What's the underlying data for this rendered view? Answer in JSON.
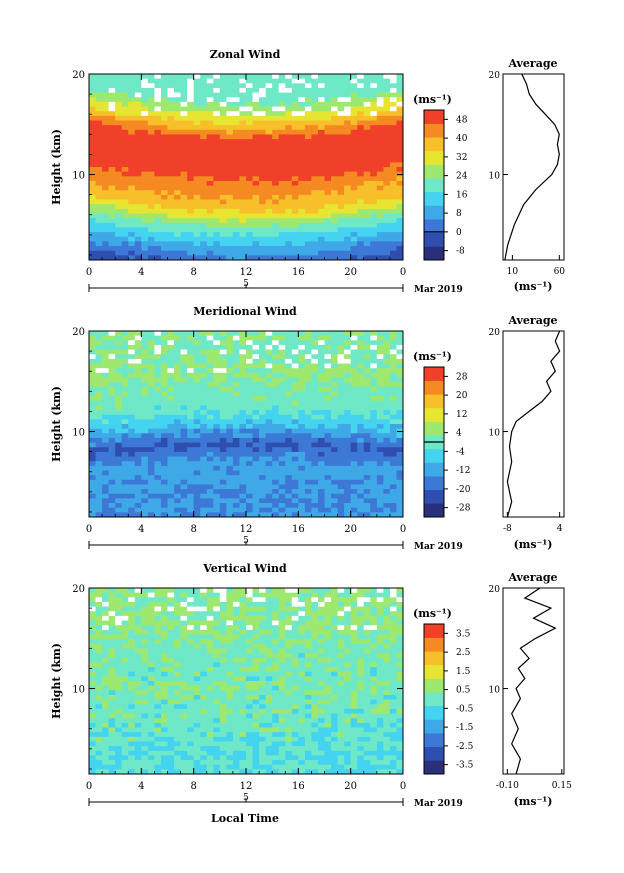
{
  "figure": {
    "xlabel": "Local Time",
    "date_label": "Mar 2019",
    "date_marker": "5"
  },
  "panels": [
    {
      "title": "Zonal Wind",
      "ylabel": "Height (km)",
      "unit": "(ms⁻¹)",
      "avg_title": "Average",
      "avg_unit": "(ms⁻¹)"
    },
    {
      "title": "Meridional Wind",
      "ylabel": "Height (km)",
      "unit": "(ms⁻¹)",
      "avg_title": "Average",
      "avg_unit": "(ms⁻¹)"
    },
    {
      "title": "Vertical Wind",
      "ylabel": "Height (km)",
      "unit": "(ms⁻¹)",
      "avg_title": "Average",
      "avg_unit": "(ms⁻¹)"
    }
  ],
  "colors": {
    "scale": [
      "#2b2f7a",
      "#2e4fb0",
      "#3d78d6",
      "#3fa8e6",
      "#44d4f0",
      "#6fe8c8",
      "#9fe870",
      "#e6e632",
      "#f7c02a",
      "#f58a22",
      "#f0402a"
    ],
    "missing": "#ffffff"
  },
  "chart_data": [
    {
      "type": "heatmap",
      "title": "Zonal Wind",
      "xlabel": "Local Time",
      "ylabel": "Height (km)",
      "x_ticks": [
        "0",
        "4",
        "8",
        "12",
        "16",
        "20",
        "0"
      ],
      "y_ticks": [
        "10",
        "20"
      ],
      "xlim": [
        0,
        24
      ],
      "ylim": [
        1.5,
        20
      ],
      "colorbar": {
        "unit": "(ms⁻¹)",
        "ticks": [
          "-8",
          "0",
          "8",
          "16",
          "24",
          "32",
          "40",
          "48"
        ],
        "range": [
          -12,
          52
        ],
        "contour_level": 0
      },
      "field_description_keypoints": [
        {
          "height_km": 2,
          "value": -4
        },
        {
          "height_km": 4,
          "value": 8
        },
        {
          "height_km": 6,
          "value": 20
        },
        {
          "height_km": 8,
          "value": 36
        },
        {
          "height_km": 12,
          "value": 50
        },
        {
          "height_km": 15,
          "value": 48
        },
        {
          "height_km": 17,
          "value": 32
        },
        {
          "height_km": 19,
          "value": 20
        }
      ],
      "average_profile": {
        "title": "Average",
        "xlabel": "(ms⁻¹)",
        "x_ticks": [
          "10",
          "60"
        ],
        "y_ticks": [
          "10",
          "20"
        ],
        "xlim": [
          0,
          65
        ],
        "points": [
          [
            2,
            1.5
          ],
          [
            5,
            3
          ],
          [
            12,
            5
          ],
          [
            22,
            7
          ],
          [
            35,
            8.5
          ],
          [
            52,
            10
          ],
          [
            58,
            11
          ],
          [
            60,
            12
          ],
          [
            58,
            13
          ],
          [
            60,
            14
          ],
          [
            55,
            15
          ],
          [
            45,
            16
          ],
          [
            35,
            17
          ],
          [
            28,
            18
          ],
          [
            25,
            19
          ],
          [
            20,
            20
          ]
        ]
      }
    },
    {
      "type": "heatmap",
      "title": "Meridional Wind",
      "xlabel": "Local Time",
      "ylabel": "Height (km)",
      "x_ticks": [
        "0",
        "4",
        "8",
        "12",
        "16",
        "20",
        "0"
      ],
      "y_ticks": [
        "10",
        "20"
      ],
      "xlim": [
        0,
        24
      ],
      "ylim": [
        1.5,
        20
      ],
      "colorbar": {
        "unit": "(ms⁻¹)",
        "ticks": [
          "-28",
          "-20",
          "-12",
          "-4",
          "4",
          "12",
          "20",
          "28"
        ],
        "range": [
          -32,
          32
        ],
        "contour_level": 0
      },
      "field_description_keypoints": [
        {
          "height_km": 3,
          "value": -14
        },
        {
          "height_km": 6,
          "value": -12
        },
        {
          "height_km": 8,
          "value": -22
        },
        {
          "height_km": 10,
          "value": -8
        },
        {
          "height_km": 12,
          "value": 0
        },
        {
          "height_km": 15,
          "value": 4
        },
        {
          "height_km": 18,
          "value": 2
        }
      ],
      "average_profile": {
        "title": "Average",
        "xlabel": "(ms⁻¹)",
        "x_ticks": [
          "-8",
          "4"
        ],
        "y_ticks": [
          "10",
          "20"
        ],
        "xlim": [
          -9,
          5
        ],
        "points": [
          [
            -8,
            1.5
          ],
          [
            -7,
            3
          ],
          [
            -8,
            5
          ],
          [
            -7,
            7
          ],
          [
            -7.5,
            8.5
          ],
          [
            -7,
            10
          ],
          [
            -6,
            11
          ],
          [
            -3,
            12
          ],
          [
            0,
            13
          ],
          [
            2,
            14
          ],
          [
            1,
            15
          ],
          [
            3,
            16
          ],
          [
            2,
            17
          ],
          [
            4,
            18
          ],
          [
            3,
            19
          ],
          [
            4,
            20
          ]
        ]
      }
    },
    {
      "type": "heatmap",
      "title": "Vertical Wind",
      "xlabel": "Local Time",
      "ylabel": "Height (km)",
      "x_ticks": [
        "0",
        "4",
        "8",
        "12",
        "16",
        "20",
        "0"
      ],
      "y_ticks": [
        "10",
        "20"
      ],
      "xlim": [
        0,
        24
      ],
      "ylim": [
        1.5,
        20
      ],
      "colorbar": {
        "unit": "(ms⁻¹)",
        "ticks": [
          "-3.5",
          "-2.5",
          "-1.5",
          "-0.5",
          "0.5",
          "1.5",
          "2.5",
          "3.5"
        ],
        "range": [
          -4,
          4
        ]
      },
      "field_description_keypoints": [
        {
          "height_km": 3,
          "value": -0.3
        },
        {
          "height_km": 8,
          "value": 0.1
        },
        {
          "height_km": 14,
          "value": 0.2
        },
        {
          "height_km": 18,
          "value": 0.5
        }
      ],
      "average_profile": {
        "title": "Average",
        "xlabel": "(ms⁻¹)",
        "x_ticks": [
          "-0.10",
          "0.15"
        ],
        "y_ticks": [
          "10",
          "20"
        ],
        "xlim": [
          -0.12,
          0.16
        ],
        "points": [
          [
            -0.06,
            1.5
          ],
          [
            -0.04,
            3
          ],
          [
            -0.08,
            4.5
          ],
          [
            -0.05,
            6
          ],
          [
            -0.08,
            7.5
          ],
          [
            -0.04,
            9
          ],
          [
            -0.06,
            10
          ],
          [
            -0.02,
            11
          ],
          [
            -0.05,
            12
          ],
          [
            0.0,
            13
          ],
          [
            -0.04,
            14
          ],
          [
            0.03,
            15
          ],
          [
            0.12,
            16
          ],
          [
            0.02,
            17
          ],
          [
            0.1,
            18
          ],
          [
            -0.02,
            19
          ],
          [
            0.05,
            20
          ]
        ]
      }
    }
  ]
}
